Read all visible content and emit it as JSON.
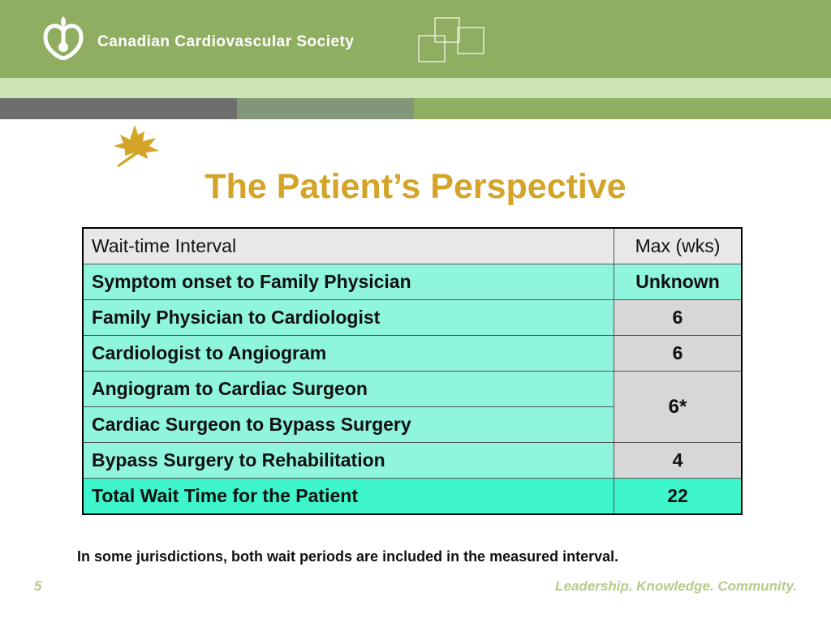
{
  "header": {
    "org_name": "Canadian Cardiovascular Society",
    "colors": {
      "green": "#8fae62",
      "light_green": "#cde5b5",
      "gray": "#6e6e6e",
      "gold": "#d3a427"
    }
  },
  "slide": {
    "title": "The Patient’s Perspective",
    "footnote": "In some jurisdictions, both wait periods are included in the measured interval.",
    "page_number": "5",
    "tagline": "Leadership. Knowledge. Community."
  },
  "table": {
    "headers": [
      "Wait-time Interval",
      "Max (wks)"
    ],
    "rows": [
      {
        "label": "Symptom onset to Family Physician",
        "value": "Unknown"
      },
      {
        "label": "Family Physician to Cardiologist",
        "value": "6"
      },
      {
        "label": "Cardiologist to Angiogram",
        "value": "6"
      },
      {
        "label": "Angiogram to Cardiac Surgeon",
        "value": "6*"
      },
      {
        "label": "Cardiac Surgeon to Bypass Surgery"
      },
      {
        "label": "Bypass Surgery to Rehabilitation",
        "value": "4"
      },
      {
        "label": "Total Wait Time for the Patient",
        "value": "22"
      }
    ]
  }
}
